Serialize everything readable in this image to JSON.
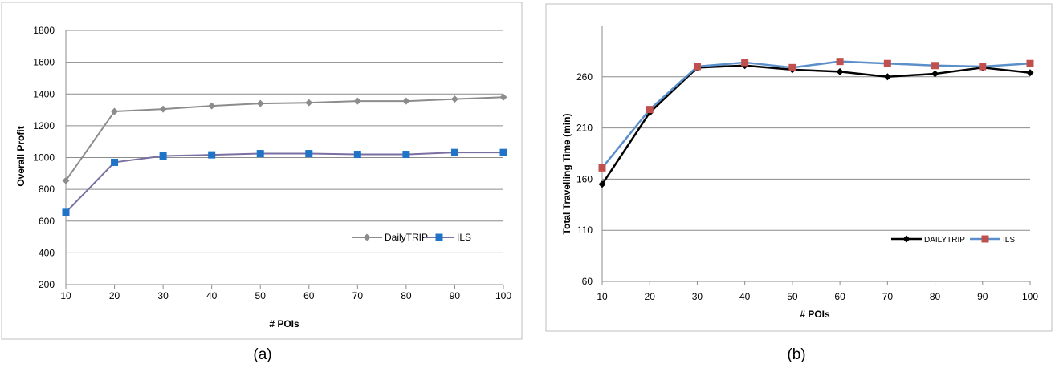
{
  "chart_data": [
    {
      "type": "line",
      "caption": "(a)",
      "xlabel": "# POIs",
      "ylabel": "Overall Profit",
      "x": [
        10,
        20,
        30,
        40,
        50,
        60,
        70,
        80,
        90,
        100
      ],
      "xticks": [
        10,
        20,
        30,
        40,
        50,
        60,
        70,
        80,
        90,
        100
      ],
      "ylim": [
        200,
        1800
      ],
      "yticks": [
        200,
        400,
        600,
        800,
        1000,
        1200,
        1400,
        1600,
        1800
      ],
      "grid": true,
      "legend_position": "bottom-right",
      "series": [
        {
          "name": "DailyTRIP",
          "color": "#8c8c8c",
          "marker": "diamond",
          "values": [
            855,
            1290,
            1305,
            1325,
            1340,
            1345,
            1355,
            1355,
            1368,
            1380
          ]
        },
        {
          "name": "ILS",
          "color": "#7a6fa0",
          "marker_color": "#1f74c8",
          "marker": "square",
          "values": [
            655,
            970,
            1010,
            1017,
            1025,
            1025,
            1020,
            1020,
            1032,
            1032
          ]
        }
      ]
    },
    {
      "type": "line",
      "caption": "(b)",
      "xlabel": "# POIs",
      "ylabel": "Total Travelling Time (min)",
      "x": [
        10,
        20,
        30,
        40,
        50,
        60,
        70,
        80,
        90,
        100
      ],
      "xticks": [
        10,
        20,
        30,
        40,
        50,
        60,
        70,
        80,
        90,
        100
      ],
      "ylim": [
        60,
        310
      ],
      "yticks": [
        60,
        110,
        160,
        210,
        260
      ],
      "grid": true,
      "legend_position": "bottom-right",
      "series": [
        {
          "name": "DAILYTRIP",
          "color": "#000000",
          "marker": "diamond",
          "values": [
            155,
            225,
            269,
            271,
            267,
            265,
            260,
            263,
            269,
            264
          ]
        },
        {
          "name": "ILS",
          "color": "#5b8fc9",
          "marker_color": "#c0504d",
          "marker": "square",
          "values": [
            171,
            228,
            270,
            274,
            269,
            275,
            273,
            271,
            270,
            273
          ]
        }
      ]
    }
  ]
}
